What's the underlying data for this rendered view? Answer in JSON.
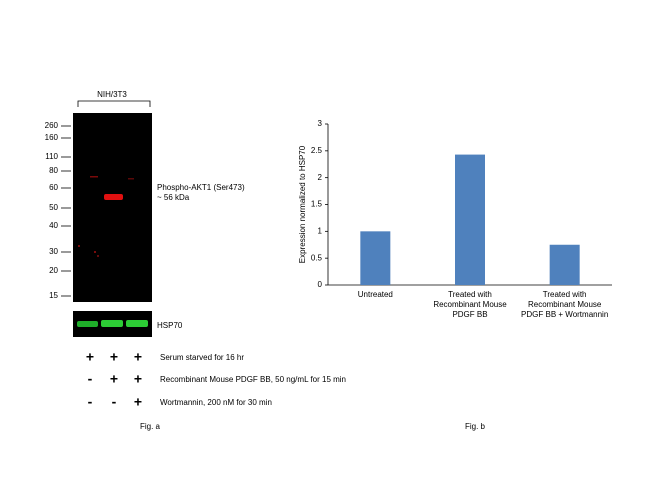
{
  "blot": {
    "cell_line": "NIH/3T3",
    "markers": [
      260,
      160,
      110,
      80,
      60,
      50,
      40,
      30,
      20,
      15
    ],
    "band_label": "Phospho-AKT1 (Ser473)",
    "band_size": "~ 56 kDa",
    "loading_label": "HSP70",
    "conditions": [
      {
        "signs": [
          "+",
          "+",
          "+"
        ],
        "text": "Serum starved for 16 hr"
      },
      {
        "signs": [
          "-",
          "+",
          "+"
        ],
        "text": "Recombinant Mouse PDGF BB, 50 ng/mL for 15 min"
      },
      {
        "signs": [
          "-",
          "-",
          "+"
        ],
        "text": "Wortmannin, 200 nM for 30 min"
      }
    ],
    "figure_label": "Fig. a"
  },
  "chart_data": {
    "type": "bar",
    "ylabel": "Expression  normalized to HSP70",
    "categories": [
      "Untreated",
      "Treated with\nRecombinant Mouse\nPDGF BB",
      "Treated with\nRecombinant Mouse\nPDGF BB + Wortmannin"
    ],
    "values": [
      1,
      2.43,
      0.75
    ],
    "color": "#4f81bd",
    "ylim": [
      0,
      3
    ],
    "yticks": [
      0,
      0.5,
      1,
      1.5,
      2,
      2.5,
      3
    ],
    "figure_label": "Fig. b"
  }
}
